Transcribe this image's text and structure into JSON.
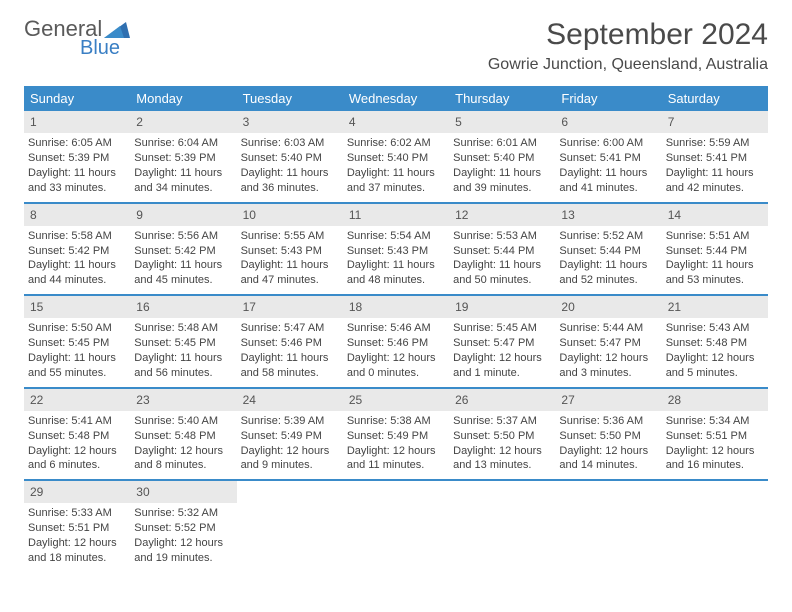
{
  "logo": {
    "text1": "General",
    "text2": "Blue"
  },
  "colors": {
    "header_bg": "#3a8bc9",
    "header_text": "#ffffff",
    "daynum_bg": "#e9e9e9",
    "row_border": "#3a8bc9",
    "logo_gray": "#5a5a5a",
    "logo_blue": "#3a7fc4",
    "body_text": "#444444"
  },
  "title": "September 2024",
  "location": "Gowrie Junction, Queensland, Australia",
  "weekdays": [
    "Sunday",
    "Monday",
    "Tuesday",
    "Wednesday",
    "Thursday",
    "Friday",
    "Saturday"
  ],
  "weeks": [
    [
      {
        "n": "1",
        "sr": "Sunrise: 6:05 AM",
        "ss": "Sunset: 5:39 PM",
        "dl": "Daylight: 11 hours and 33 minutes."
      },
      {
        "n": "2",
        "sr": "Sunrise: 6:04 AM",
        "ss": "Sunset: 5:39 PM",
        "dl": "Daylight: 11 hours and 34 minutes."
      },
      {
        "n": "3",
        "sr": "Sunrise: 6:03 AM",
        "ss": "Sunset: 5:40 PM",
        "dl": "Daylight: 11 hours and 36 minutes."
      },
      {
        "n": "4",
        "sr": "Sunrise: 6:02 AM",
        "ss": "Sunset: 5:40 PM",
        "dl": "Daylight: 11 hours and 37 minutes."
      },
      {
        "n": "5",
        "sr": "Sunrise: 6:01 AM",
        "ss": "Sunset: 5:40 PM",
        "dl": "Daylight: 11 hours and 39 minutes."
      },
      {
        "n": "6",
        "sr": "Sunrise: 6:00 AM",
        "ss": "Sunset: 5:41 PM",
        "dl": "Daylight: 11 hours and 41 minutes."
      },
      {
        "n": "7",
        "sr": "Sunrise: 5:59 AM",
        "ss": "Sunset: 5:41 PM",
        "dl": "Daylight: 11 hours and 42 minutes."
      }
    ],
    [
      {
        "n": "8",
        "sr": "Sunrise: 5:58 AM",
        "ss": "Sunset: 5:42 PM",
        "dl": "Daylight: 11 hours and 44 minutes."
      },
      {
        "n": "9",
        "sr": "Sunrise: 5:56 AM",
        "ss": "Sunset: 5:42 PM",
        "dl": "Daylight: 11 hours and 45 minutes."
      },
      {
        "n": "10",
        "sr": "Sunrise: 5:55 AM",
        "ss": "Sunset: 5:43 PM",
        "dl": "Daylight: 11 hours and 47 minutes."
      },
      {
        "n": "11",
        "sr": "Sunrise: 5:54 AM",
        "ss": "Sunset: 5:43 PM",
        "dl": "Daylight: 11 hours and 48 minutes."
      },
      {
        "n": "12",
        "sr": "Sunrise: 5:53 AM",
        "ss": "Sunset: 5:44 PM",
        "dl": "Daylight: 11 hours and 50 minutes."
      },
      {
        "n": "13",
        "sr": "Sunrise: 5:52 AM",
        "ss": "Sunset: 5:44 PM",
        "dl": "Daylight: 11 hours and 52 minutes."
      },
      {
        "n": "14",
        "sr": "Sunrise: 5:51 AM",
        "ss": "Sunset: 5:44 PM",
        "dl": "Daylight: 11 hours and 53 minutes."
      }
    ],
    [
      {
        "n": "15",
        "sr": "Sunrise: 5:50 AM",
        "ss": "Sunset: 5:45 PM",
        "dl": "Daylight: 11 hours and 55 minutes."
      },
      {
        "n": "16",
        "sr": "Sunrise: 5:48 AM",
        "ss": "Sunset: 5:45 PM",
        "dl": "Daylight: 11 hours and 56 minutes."
      },
      {
        "n": "17",
        "sr": "Sunrise: 5:47 AM",
        "ss": "Sunset: 5:46 PM",
        "dl": "Daylight: 11 hours and 58 minutes."
      },
      {
        "n": "18",
        "sr": "Sunrise: 5:46 AM",
        "ss": "Sunset: 5:46 PM",
        "dl": "Daylight: 12 hours and 0 minutes."
      },
      {
        "n": "19",
        "sr": "Sunrise: 5:45 AM",
        "ss": "Sunset: 5:47 PM",
        "dl": "Daylight: 12 hours and 1 minute."
      },
      {
        "n": "20",
        "sr": "Sunrise: 5:44 AM",
        "ss": "Sunset: 5:47 PM",
        "dl": "Daylight: 12 hours and 3 minutes."
      },
      {
        "n": "21",
        "sr": "Sunrise: 5:43 AM",
        "ss": "Sunset: 5:48 PM",
        "dl": "Daylight: 12 hours and 5 minutes."
      }
    ],
    [
      {
        "n": "22",
        "sr": "Sunrise: 5:41 AM",
        "ss": "Sunset: 5:48 PM",
        "dl": "Daylight: 12 hours and 6 minutes."
      },
      {
        "n": "23",
        "sr": "Sunrise: 5:40 AM",
        "ss": "Sunset: 5:48 PM",
        "dl": "Daylight: 12 hours and 8 minutes."
      },
      {
        "n": "24",
        "sr": "Sunrise: 5:39 AM",
        "ss": "Sunset: 5:49 PM",
        "dl": "Daylight: 12 hours and 9 minutes."
      },
      {
        "n": "25",
        "sr": "Sunrise: 5:38 AM",
        "ss": "Sunset: 5:49 PM",
        "dl": "Daylight: 12 hours and 11 minutes."
      },
      {
        "n": "26",
        "sr": "Sunrise: 5:37 AM",
        "ss": "Sunset: 5:50 PM",
        "dl": "Daylight: 12 hours and 13 minutes."
      },
      {
        "n": "27",
        "sr": "Sunrise: 5:36 AM",
        "ss": "Sunset: 5:50 PM",
        "dl": "Daylight: 12 hours and 14 minutes."
      },
      {
        "n": "28",
        "sr": "Sunrise: 5:34 AM",
        "ss": "Sunset: 5:51 PM",
        "dl": "Daylight: 12 hours and 16 minutes."
      }
    ],
    [
      {
        "n": "29",
        "sr": "Sunrise: 5:33 AM",
        "ss": "Sunset: 5:51 PM",
        "dl": "Daylight: 12 hours and 18 minutes."
      },
      {
        "n": "30",
        "sr": "Sunrise: 5:32 AM",
        "ss": "Sunset: 5:52 PM",
        "dl": "Daylight: 12 hours and 19 minutes."
      },
      {
        "empty": true
      },
      {
        "empty": true
      },
      {
        "empty": true
      },
      {
        "empty": true
      },
      {
        "empty": true
      }
    ]
  ]
}
